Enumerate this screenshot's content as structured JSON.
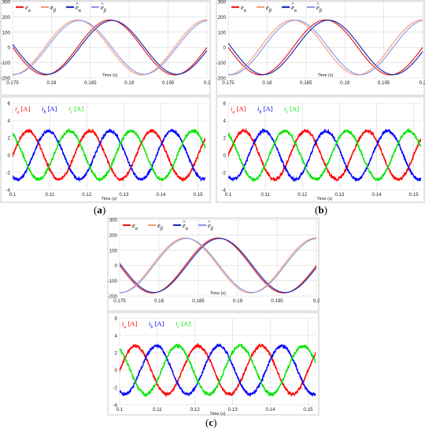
{
  "figure": {
    "panel_labels": [
      {
        "open": "(",
        "letter": "a",
        "close": ")"
      },
      {
        "open": "(",
        "letter": "b",
        "close": ")"
      },
      {
        "open": "(",
        "letter": "c",
        "close": ")"
      }
    ]
  },
  "chart_data": [
    {
      "panel": "a",
      "kind": "emf",
      "type": "line",
      "title": "",
      "xlabel": "Time (s)",
      "ylabel": "",
      "xlim": [
        0.175,
        0.2
      ],
      "ylim": [
        -200,
        300
      ],
      "xticks": [
        0.175,
        0.18,
        0.185,
        0.19,
        0.195,
        0.2
      ],
      "xtick_labels": [
        "0.175",
        "0.18",
        "0.185",
        "0.19",
        "0.195",
        "0.2"
      ],
      "yticks": [
        -200,
        -100,
        0,
        100,
        200,
        300
      ],
      "ytick_labels": [
        "-200",
        "-100",
        "0",
        "100",
        "200",
        "300"
      ],
      "grid": true,
      "legend": "top-left",
      "series": [
        {
          "name": "e_α",
          "color": "#e8211d",
          "amplitude": 180,
          "freq_hz": 60,
          "peak_time_s": 0.1875,
          "x": [
            0.175,
            0.1792,
            0.1833,
            0.1875,
            0.1917,
            0.1958,
            0.2
          ],
          "y": [
            -180,
            0,
            180,
            0,
            -180,
            0,
            180
          ]
        },
        {
          "name": "e_β",
          "color": "#f6a07a",
          "amplitude": 180,
          "freq_hz": 60,
          "peak_time_s": 0.1833,
          "x": [
            0.175,
            0.1792,
            0.1833,
            0.1875,
            0.1917,
            0.1958,
            0.2
          ],
          "y": [
            0,
            -180,
            0,
            180,
            0,
            -180,
            0
          ]
        },
        {
          "name": "ê_α",
          "color": "#1f2fb4",
          "amplitude": 176,
          "freq_hz": 60,
          "peak_time_s": 0.1878,
          "x": [
            0.175,
            0.1792,
            0.1833,
            0.1875,
            0.1917,
            0.1958,
            0.2
          ],
          "y": [
            -176,
            -5,
            176,
            5,
            -176,
            -5,
            176
          ]
        },
        {
          "name": "ê_β",
          "color": "#8f9ae8",
          "amplitude": 176,
          "freq_hz": 60,
          "peak_time_s": 0.1836,
          "x": [
            0.175,
            0.1792,
            0.1833,
            0.1875,
            0.1917,
            0.1958,
            0.2
          ],
          "y": [
            5,
            -176,
            -5,
            176,
            5,
            -176,
            -5
          ]
        }
      ]
    },
    {
      "panel": "a",
      "kind": "current",
      "type": "line",
      "title": "",
      "xlabel": "Time (s)",
      "ylabel": "",
      "xlim": [
        0.1,
        0.152
      ],
      "ylim": [
        -4,
        6
      ],
      "xticks": [
        0.1,
        0.11,
        0.12,
        0.13,
        0.14,
        0.15
      ],
      "xtick_labels": [
        "0.1",
        "0.11",
        "0.12",
        "0.13",
        "0.14",
        "0.15"
      ],
      "yticks": [
        -4,
        -2,
        0,
        2,
        4,
        6
      ],
      "ytick_labels": [
        "-4",
        "-2",
        "0",
        "2",
        "4",
        "6"
      ],
      "grid": true,
      "legend": "top-left",
      "series": [
        {
          "name": "i_a [A]",
          "color": "#ff0000",
          "amplitude": 2.8,
          "freq_hz": 60,
          "peak_time_s": 0.1042,
          "x": [
            0.1,
            0.1042,
            0.1083,
            0.1125,
            0.1167,
            0.1208,
            0.125,
            0.1292,
            0.1333,
            0.1375,
            0.1417,
            0.1458,
            0.15
          ],
          "y": [
            0,
            2.8,
            0,
            -2.8,
            0,
            2.8,
            0,
            -2.8,
            0,
            2.8,
            0,
            -2.8,
            0
          ]
        },
        {
          "name": "i_b [A]",
          "color": "#0000ff",
          "amplitude": 2.8,
          "freq_hz": 60,
          "peak_time_s": 0.1097,
          "x": [
            0.1,
            0.1042,
            0.1083,
            0.1125,
            0.1167,
            0.1208,
            0.125,
            0.1292,
            0.1333,
            0.1375,
            0.1417,
            0.1458,
            0.15
          ],
          "y": [
            -2.4,
            -1.4,
            2.4,
            1.4,
            -2.4,
            -1.4,
            2.4,
            1.4,
            -2.4,
            -1.4,
            2.4,
            1.4,
            -2.4
          ]
        },
        {
          "name": "i_c [A]",
          "color": "#00e600",
          "amplitude": 2.8,
          "freq_hz": 60,
          "peak_time_s": 0.1153,
          "x": [
            0.1,
            0.1042,
            0.1083,
            0.1125,
            0.1167,
            0.1208,
            0.125,
            0.1292,
            0.1333,
            0.1375,
            0.1417,
            0.1458,
            0.15
          ],
          "y": [
            2.4,
            -1.4,
            -2.4,
            1.4,
            2.4,
            -1.4,
            -2.4,
            1.4,
            2.4,
            -1.4,
            -2.4,
            1.4,
            2.4
          ]
        }
      ]
    },
    {
      "panel": "b",
      "kind": "emf",
      "type": "line",
      "title": "",
      "xlabel": "Time (s)",
      "ylabel": "",
      "xlim": [
        0.175,
        0.2
      ],
      "ylim": [
        -200,
        300
      ],
      "xticks": [
        0.175,
        0.18,
        0.185,
        0.19,
        0.195,
        0.2
      ],
      "xtick_labels": [
        "0.175",
        "0.18",
        "0.185",
        "0.19",
        "0.195",
        "0.2"
      ],
      "yticks": [
        -200,
        -100,
        0,
        100,
        200,
        300
      ],
      "ytick_labels": [
        "-200",
        "-100",
        "0",
        "100",
        "200",
        "300"
      ],
      "grid": true,
      "legend": "top-left",
      "series": [
        {
          "name": "e_α",
          "color": "#e8211d",
          "amplitude": 180,
          "freq_hz": 60,
          "peak_time_s": 0.1875,
          "x": [
            0.175,
            0.1792,
            0.1833,
            0.1875,
            0.1917,
            0.1958,
            0.2
          ],
          "y": [
            -180,
            0,
            180,
            0,
            -180,
            0,
            180
          ]
        },
        {
          "name": "e_β",
          "color": "#f6a07a",
          "amplitude": 180,
          "freq_hz": 60,
          "peak_time_s": 0.1833,
          "x": [
            0.175,
            0.1792,
            0.1833,
            0.1875,
            0.1917,
            0.1958,
            0.2
          ],
          "y": [
            0,
            -180,
            0,
            180,
            0,
            -180,
            0
          ]
        },
        {
          "name": "ê_α",
          "color": "#1f2fb4",
          "amplitude": 178,
          "freq_hz": 60,
          "peak_time_s": 0.1879,
          "x": [
            0.175,
            0.1792,
            0.1833,
            0.1875,
            0.1917,
            0.1958,
            0.2
          ],
          "y": [
            -178,
            -6,
            178,
            6,
            -178,
            -6,
            178
          ]
        },
        {
          "name": "ê_β",
          "color": "#8f9ae8",
          "amplitude": 178,
          "freq_hz": 60,
          "peak_time_s": 0.1837,
          "x": [
            0.175,
            0.1792,
            0.1833,
            0.1875,
            0.1917,
            0.1958,
            0.2
          ],
          "y": [
            6,
            -178,
            -6,
            178,
            6,
            -178,
            -6
          ]
        }
      ]
    },
    {
      "panel": "b",
      "kind": "current",
      "type": "line",
      "title": "",
      "xlabel": "Time (s)",
      "ylabel": "",
      "xlim": [
        0.1,
        0.152
      ],
      "ylim": [
        -4,
        6
      ],
      "xticks": [
        0.1,
        0.11,
        0.12,
        0.13,
        0.14,
        0.15
      ],
      "xtick_labels": [
        "0.1",
        "0.11",
        "0.12",
        "0.13",
        "0.14",
        "0.15"
      ],
      "yticks": [
        -4,
        -2,
        0,
        2,
        4,
        6
      ],
      "ytick_labels": [
        "-4",
        "-2",
        "0",
        "2",
        "4",
        "6"
      ],
      "grid": true,
      "legend": "top-left",
      "series": [
        {
          "name": "i_a [A]",
          "color": "#ff0000",
          "amplitude": 2.8,
          "freq_hz": 60,
          "peak_time_s": 0.1042,
          "x": [
            0.1,
            0.1042,
            0.1083,
            0.1125,
            0.1167,
            0.1208,
            0.125,
            0.1292,
            0.1333,
            0.1375,
            0.1417,
            0.1458,
            0.15
          ],
          "y": [
            0,
            2.8,
            0,
            -2.8,
            0,
            2.8,
            0,
            -2.8,
            0,
            2.8,
            0,
            -2.8,
            0
          ]
        },
        {
          "name": "i_b [A]",
          "color": "#0000ff",
          "amplitude": 2.8,
          "freq_hz": 60,
          "peak_time_s": 0.1097,
          "x": [
            0.1,
            0.1042,
            0.1083,
            0.1125,
            0.1167,
            0.1208,
            0.125,
            0.1292,
            0.1333,
            0.1375,
            0.1417,
            0.1458,
            0.15
          ],
          "y": [
            -2.4,
            -1.4,
            2.4,
            1.4,
            -2.4,
            -1.4,
            2.4,
            1.4,
            -2.4,
            -1.4,
            2.4,
            1.4,
            -2.4
          ]
        },
        {
          "name": "i_c [A]",
          "color": "#00e600",
          "amplitude": 2.8,
          "freq_hz": 60,
          "peak_time_s": 0.1153,
          "x": [
            0.1,
            0.1042,
            0.1083,
            0.1125,
            0.1167,
            0.1208,
            0.125,
            0.1292,
            0.1333,
            0.1375,
            0.1417,
            0.1458,
            0.15
          ],
          "y": [
            2.4,
            -1.4,
            -2.4,
            1.4,
            2.4,
            -1.4,
            -2.4,
            1.4,
            2.4,
            -1.4,
            -2.4,
            1.4,
            2.4
          ]
        }
      ]
    },
    {
      "panel": "c",
      "kind": "emf",
      "type": "line",
      "title": "",
      "xlabel": "Time (s)",
      "ylabel": "",
      "xlim": [
        0.175,
        0.2
      ],
      "ylim": [
        -200,
        300
      ],
      "xticks": [
        0.175,
        0.18,
        0.185,
        0.19,
        0.195,
        0.2
      ],
      "xtick_labels": [
        "0.175",
        "0.18",
        "0.185",
        "0.19",
        "0.195",
        "0.2"
      ],
      "yticks": [
        -200,
        -100,
        0,
        100,
        200,
        300
      ],
      "ytick_labels": [
        "-200",
        "-100",
        "0",
        "100",
        "200",
        "300"
      ],
      "grid": true,
      "legend": "top-left",
      "series": [
        {
          "name": "e_α",
          "color": "#e8211d",
          "amplitude": 180,
          "freq_hz": 60,
          "peak_time_s": 0.1875,
          "x": [
            0.175,
            0.1792,
            0.1833,
            0.1875,
            0.1917,
            0.1958,
            0.2
          ],
          "y": [
            -180,
            0,
            180,
            0,
            -180,
            0,
            180
          ]
        },
        {
          "name": "e_β",
          "color": "#f6a07a",
          "amplitude": 180,
          "freq_hz": 60,
          "peak_time_s": 0.1833,
          "x": [
            0.175,
            0.1792,
            0.1833,
            0.1875,
            0.1917,
            0.1958,
            0.2
          ],
          "y": [
            0,
            -180,
            0,
            180,
            0,
            -180,
            0
          ]
        },
        {
          "name": "ê_α",
          "color": "#1f2fb4",
          "amplitude": 177,
          "freq_hz": 60,
          "peak_time_s": 0.1877,
          "x": [
            0.175,
            0.1792,
            0.1833,
            0.1875,
            0.1917,
            0.1958,
            0.2
          ],
          "y": [
            -177,
            -3,
            177,
            3,
            -177,
            -3,
            177
          ]
        },
        {
          "name": "ê_β",
          "color": "#8f9ae8",
          "amplitude": 177,
          "freq_hz": 60,
          "peak_time_s": 0.1835,
          "x": [
            0.175,
            0.1792,
            0.1833,
            0.1875,
            0.1917,
            0.1958,
            0.2
          ],
          "y": [
            3,
            -177,
            -3,
            177,
            3,
            -177,
            -3
          ]
        }
      ]
    },
    {
      "panel": "c",
      "kind": "current",
      "type": "line",
      "title": "",
      "xlabel": "Time (s)",
      "ylabel": "",
      "xlim": [
        0.1,
        0.152
      ],
      "ylim": [
        -4,
        6
      ],
      "xticks": [
        0.1,
        0.11,
        0.12,
        0.13,
        0.14,
        0.15
      ],
      "xtick_labels": [
        "0.1",
        "0.11",
        "0.12",
        "0.13",
        "0.14",
        "0.15"
      ],
      "yticks": [
        -4,
        -2,
        0,
        2,
        4,
        6
      ],
      "ytick_labels": [
        "-4",
        "-2",
        "0",
        "2",
        "4",
        "6"
      ],
      "grid": true,
      "legend": "top-left",
      "series": [
        {
          "name": "i_a [A]",
          "color": "#ff0000",
          "amplitude": 2.8,
          "freq_hz": 60,
          "peak_time_s": 0.1042,
          "x": [
            0.1,
            0.1042,
            0.1083,
            0.1125,
            0.1167,
            0.1208,
            0.125,
            0.1292,
            0.1333,
            0.1375,
            0.1417,
            0.1458,
            0.15
          ],
          "y": [
            0,
            2.8,
            0,
            -2.8,
            0,
            2.8,
            0,
            -2.8,
            0,
            2.8,
            0,
            -2.8,
            0
          ]
        },
        {
          "name": "i_b [A]",
          "color": "#0000ff",
          "amplitude": 2.8,
          "freq_hz": 60,
          "peak_time_s": 0.1097,
          "x": [
            0.1,
            0.1042,
            0.1083,
            0.1125,
            0.1167,
            0.1208,
            0.125,
            0.1292,
            0.1333,
            0.1375,
            0.1417,
            0.1458,
            0.15
          ],
          "y": [
            -2.4,
            -1.4,
            2.4,
            1.4,
            -2.4,
            -1.4,
            2.4,
            1.4,
            -2.4,
            -1.4,
            2.4,
            1.4,
            -2.4
          ]
        },
        {
          "name": "i_c [A]",
          "color": "#00e600",
          "amplitude": 2.8,
          "freq_hz": 60,
          "peak_time_s": 0.1153,
          "x": [
            0.1,
            0.1042,
            0.1083,
            0.1125,
            0.1167,
            0.1208,
            0.125,
            0.1292,
            0.1333,
            0.1375,
            0.1417,
            0.1458,
            0.15
          ],
          "y": [
            2.4,
            -1.4,
            -2.4,
            1.4,
            2.4,
            -1.4,
            -2.4,
            1.4,
            2.4,
            -1.4,
            -2.4,
            1.4,
            2.4
          ]
        }
      ]
    }
  ]
}
